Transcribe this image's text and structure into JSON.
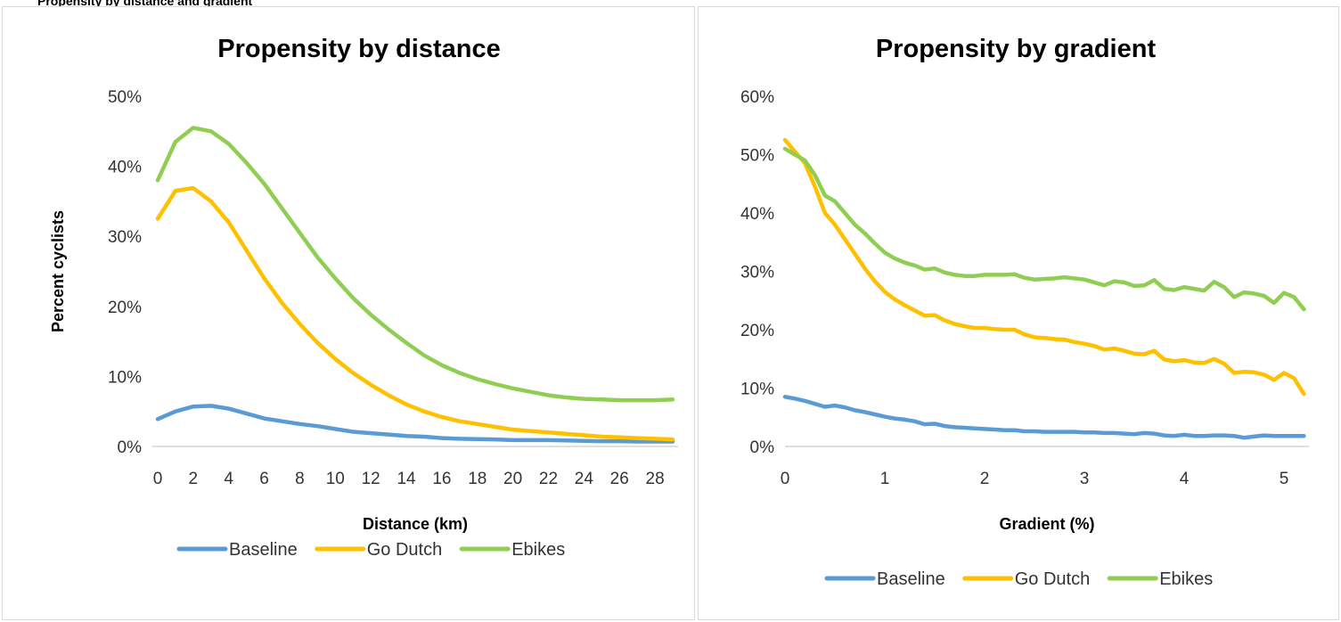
{
  "caption_fragment": "Propensity by distance and gradient",
  "colors": {
    "Baseline": "#5b9bd5",
    "Go Dutch": "#ffc000",
    "Ebikes": "#8fce53"
  },
  "chart_data": [
    {
      "type": "line",
      "title": "Propensity by distance",
      "xlabel": "Distance (km)",
      "ylabel": "Percent cyclists",
      "xlim": [
        -0.3,
        29.3
      ],
      "ylim": [
        0,
        50
      ],
      "xticks": [
        0,
        2,
        4,
        6,
        8,
        10,
        12,
        14,
        16,
        18,
        20,
        22,
        24,
        26,
        28
      ],
      "yticks": [
        "0%",
        "10%",
        "20%",
        "30%",
        "40%",
        "50%"
      ],
      "legend": "bottom",
      "x": [
        0,
        1,
        2,
        3,
        4,
        5,
        6,
        7,
        8,
        9,
        10,
        11,
        12,
        13,
        14,
        15,
        16,
        17,
        18,
        19,
        20,
        21,
        22,
        23,
        24,
        25,
        26,
        27,
        28,
        29
      ],
      "series": [
        {
          "name": "Baseline",
          "values": [
            3.9,
            5.0,
            5.7,
            5.8,
            5.4,
            4.7,
            4.0,
            3.6,
            3.2,
            2.9,
            2.5,
            2.1,
            1.9,
            1.7,
            1.5,
            1.4,
            1.2,
            1.1,
            1.05,
            1.0,
            0.9,
            0.9,
            0.9,
            0.85,
            0.8,
            0.75,
            0.75,
            0.7,
            0.7,
            0.7
          ]
        },
        {
          "name": "Go Dutch",
          "values": [
            32.5,
            36.5,
            36.9,
            35.0,
            32.0,
            28.0,
            24.0,
            20.5,
            17.5,
            14.8,
            12.5,
            10.5,
            8.8,
            7.3,
            6.0,
            5.0,
            4.2,
            3.6,
            3.2,
            2.8,
            2.4,
            2.2,
            2.0,
            1.8,
            1.6,
            1.4,
            1.3,
            1.2,
            1.1,
            1.0
          ]
        },
        {
          "name": "Ebikes",
          "values": [
            38.0,
            43.5,
            45.5,
            45.0,
            43.2,
            40.5,
            37.5,
            34.0,
            30.5,
            27.0,
            24.0,
            21.2,
            18.8,
            16.7,
            14.8,
            13.0,
            11.6,
            10.5,
            9.6,
            8.9,
            8.3,
            7.8,
            7.3,
            7.0,
            6.8,
            6.7,
            6.6,
            6.6,
            6.6,
            6.7
          ]
        }
      ]
    },
    {
      "type": "line",
      "title": "Propensity by gradient",
      "xlabel": "Gradient (%)",
      "ylabel": "",
      "xlim": [
        0,
        5.25
      ],
      "ylim": [
        0,
        60
      ],
      "xticks": [
        0,
        1,
        2,
        3,
        4,
        5
      ],
      "yticks": [
        "0%",
        "10%",
        "20%",
        "30%",
        "40%",
        "50%",
        "60%"
      ],
      "legend": "bottom",
      "x": [
        0,
        0.1,
        0.2,
        0.3,
        0.4,
        0.5,
        0.6,
        0.7,
        0.8,
        0.9,
        1.0,
        1.1,
        1.2,
        1.3,
        1.4,
        1.5,
        1.6,
        1.7,
        1.8,
        1.9,
        2.0,
        2.1,
        2.2,
        2.3,
        2.4,
        2.5,
        2.6,
        2.7,
        2.8,
        2.9,
        3.0,
        3.1,
        3.2,
        3.3,
        3.4,
        3.5,
        3.6,
        3.7,
        3.8,
        3.9,
        4.0,
        4.1,
        4.2,
        4.3,
        4.4,
        4.5,
        4.6,
        4.7,
        4.8,
        4.9,
        5.0,
        5.1,
        5.2
      ],
      "series": [
        {
          "name": "Baseline",
          "values": [
            8.5,
            8.2,
            7.8,
            7.3,
            6.8,
            7.0,
            6.7,
            6.2,
            5.9,
            5.5,
            5.1,
            4.8,
            4.6,
            4.3,
            3.8,
            3.9,
            3.5,
            3.3,
            3.2,
            3.1,
            3.0,
            2.9,
            2.8,
            2.8,
            2.6,
            2.6,
            2.5,
            2.5,
            2.5,
            2.5,
            2.4,
            2.4,
            2.3,
            2.3,
            2.2,
            2.1,
            2.3,
            2.2,
            1.9,
            1.8,
            2.0,
            1.8,
            1.8,
            1.9,
            1.9,
            1.8,
            1.5,
            1.7,
            1.9,
            1.8,
            1.8,
            1.8,
            1.8
          ]
        },
        {
          "name": "Go Dutch",
          "values": [
            52.5,
            50.5,
            48.5,
            44.5,
            40.0,
            38.0,
            35.5,
            33.0,
            30.5,
            28.3,
            26.5,
            25.2,
            24.2,
            23.3,
            22.4,
            22.5,
            21.6,
            21.0,
            20.6,
            20.3,
            20.3,
            20.1,
            20.0,
            20.0,
            19.2,
            18.7,
            18.6,
            18.4,
            18.3,
            17.9,
            17.6,
            17.2,
            16.6,
            16.8,
            16.4,
            15.9,
            15.8,
            16.4,
            14.9,
            14.6,
            14.8,
            14.4,
            14.3,
            15.0,
            14.2,
            12.6,
            12.8,
            12.7,
            12.3,
            11.4,
            12.6,
            11.7,
            9.0
          ]
        },
        {
          "name": "Ebikes",
          "values": [
            51.0,
            50.0,
            49.0,
            46.5,
            43.0,
            42.0,
            40.0,
            38.0,
            36.5,
            34.8,
            33.2,
            32.2,
            31.5,
            31.0,
            30.3,
            30.5,
            29.8,
            29.4,
            29.2,
            29.2,
            29.4,
            29.4,
            29.4,
            29.5,
            28.9,
            28.6,
            28.7,
            28.8,
            29.0,
            28.8,
            28.6,
            28.1,
            27.6,
            28.3,
            28.1,
            27.5,
            27.6,
            28.5,
            27.0,
            26.8,
            27.3,
            27.0,
            26.7,
            28.2,
            27.3,
            25.6,
            26.4,
            26.2,
            25.8,
            24.6,
            26.3,
            25.6,
            23.5
          ]
        }
      ]
    }
  ]
}
